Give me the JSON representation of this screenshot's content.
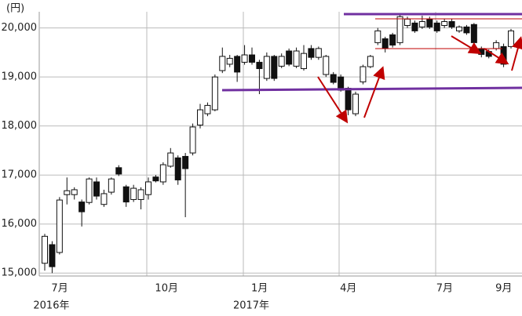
{
  "chart_data": {
    "type": "candlestick",
    "unit_label": "(円)",
    "categories": [
      null,
      "7月",
      null,
      null,
      null,
      null,
      null,
      null,
      null,
      null,
      null,
      null,
      null,
      null,
      null,
      "10月",
      null,
      null,
      null,
      null,
      null,
      null,
      null,
      null,
      null,
      null,
      null,
      null,
      "1月",
      null,
      null,
      null,
      null,
      null,
      null,
      null,
      null,
      null,
      null,
      null,
      "4月",
      null,
      null,
      null,
      null,
      null,
      null,
      null,
      null,
      null,
      null,
      null,
      null,
      "7月",
      null,
      null,
      null,
      null,
      null,
      null,
      null,
      "9月",
      null,
      null
    ],
    "year_labels": [
      null,
      "2016年",
      null,
      null,
      null,
      null,
      null,
      null,
      null,
      null,
      null,
      null,
      null,
      null,
      null,
      null,
      null,
      null,
      null,
      null,
      null,
      null,
      null,
      null,
      null,
      null,
      null,
      null,
      "2017年",
      null,
      null,
      null,
      null,
      null,
      null,
      null,
      null,
      null,
      null,
      null,
      null,
      null,
      null,
      null,
      null,
      null,
      null,
      null,
      null,
      null,
      null,
      null,
      null,
      null,
      null,
      null,
      null,
      null,
      null,
      null,
      null,
      null,
      null,
      null
    ],
    "open": [
      15200,
      15580,
      15420,
      16600,
      16600,
      16450,
      16440,
      16860,
      16400,
      16650,
      17150,
      16760,
      16500,
      16500,
      16600,
      16960,
      16860,
      17180,
      17350,
      17380,
      17450,
      18020,
      18250,
      18330,
      19130,
      19260,
      19420,
      19300,
      19450,
      19300,
      18970,
      19420,
      19220,
      19530,
      19220,
      19170,
      19580,
      19400,
      19050,
      19050,
      19000,
      18770,
      18250,
      18900,
      19210,
      19700,
      19780,
      19860,
      19700,
      20050,
      20100,
      20020,
      20180,
      20100,
      20050,
      20130,
      19940,
      20020,
      20070,
      19580,
      19520,
      19580,
      19620,
      19620
    ],
    "high": [
      15800,
      15650,
      16550,
      16950,
      16750,
      16500,
      16950,
      16950,
      16700,
      16950,
      17200,
      16800,
      16800,
      16750,
      16950,
      17000,
      17260,
      17550,
      17400,
      17450,
      18050,
      18450,
      18480,
      19050,
      19600,
      19450,
      19450,
      19650,
      19600,
      19350,
      19500,
      19450,
      19480,
      19580,
      19600,
      19650,
      19650,
      19620,
      19450,
      19100,
      19050,
      18800,
      18700,
      19250,
      19450,
      20000,
      19820,
      19900,
      20280,
      20230,
      20150,
      20250,
      20230,
      20150,
      20180,
      20180,
      20050,
      20060,
      20100,
      19620,
      19560,
      19750,
      19680,
      19980
    ],
    "low": [
      15050,
      15000,
      15380,
      16400,
      16500,
      15950,
      16400,
      16500,
      16350,
      16600,
      16980,
      16350,
      16450,
      16300,
      16500,
      16850,
      16800,
      17150,
      16800,
      16140,
      17400,
      17950,
      18200,
      18300,
      19080,
      19200,
      18900,
      19250,
      19250,
      18650,
      18920,
      18920,
      19180,
      19220,
      19180,
      19130,
      19350,
      19350,
      19000,
      18850,
      18700,
      18220,
      18200,
      18850,
      19180,
      19650,
      19500,
      19600,
      19650,
      20000,
      19900,
      19980,
      19980,
      19900,
      20000,
      19980,
      19900,
      19860,
      19650,
      19400,
      19380,
      19540,
      19200,
      19580
    ],
    "close": [
      15750,
      15130,
      16490,
      16680,
      16700,
      16250,
      16920,
      16570,
      16620,
      16920,
      17020,
      16450,
      16730,
      16700,
      16860,
      16880,
      17210,
      17450,
      16900,
      17130,
      17980,
      18330,
      18420,
      19000,
      19420,
      19380,
      19100,
      19450,
      19300,
      19170,
      19420,
      18970,
      19420,
      19260,
      19530,
      19480,
      19400,
      19580,
      19420,
      18890,
      18730,
      18330,
      18650,
      19210,
      19420,
      19940,
      19580,
      19650,
      20230,
      20180,
      19940,
      20130,
      20020,
      19940,
      20130,
      20020,
      20020,
      19900,
      19700,
      19460,
      19420,
      19700,
      19260,
      19940
    ],
    "up_color": "#ffffff",
    "down_color": "#111111",
    "edge_color": "#111111",
    "ylim": [
      14940,
      20330
    ],
    "yticks": [
      {
        "value": 15000,
        "label": "15,000"
      },
      {
        "value": 16000,
        "label": "16,000"
      },
      {
        "value": 17000,
        "label": "17,000"
      },
      {
        "value": 18000,
        "label": "18,000"
      },
      {
        "value": 19000,
        "label": "19,000"
      },
      {
        "value": 20000,
        "label": "20,000"
      }
    ],
    "grid": true
  }
}
